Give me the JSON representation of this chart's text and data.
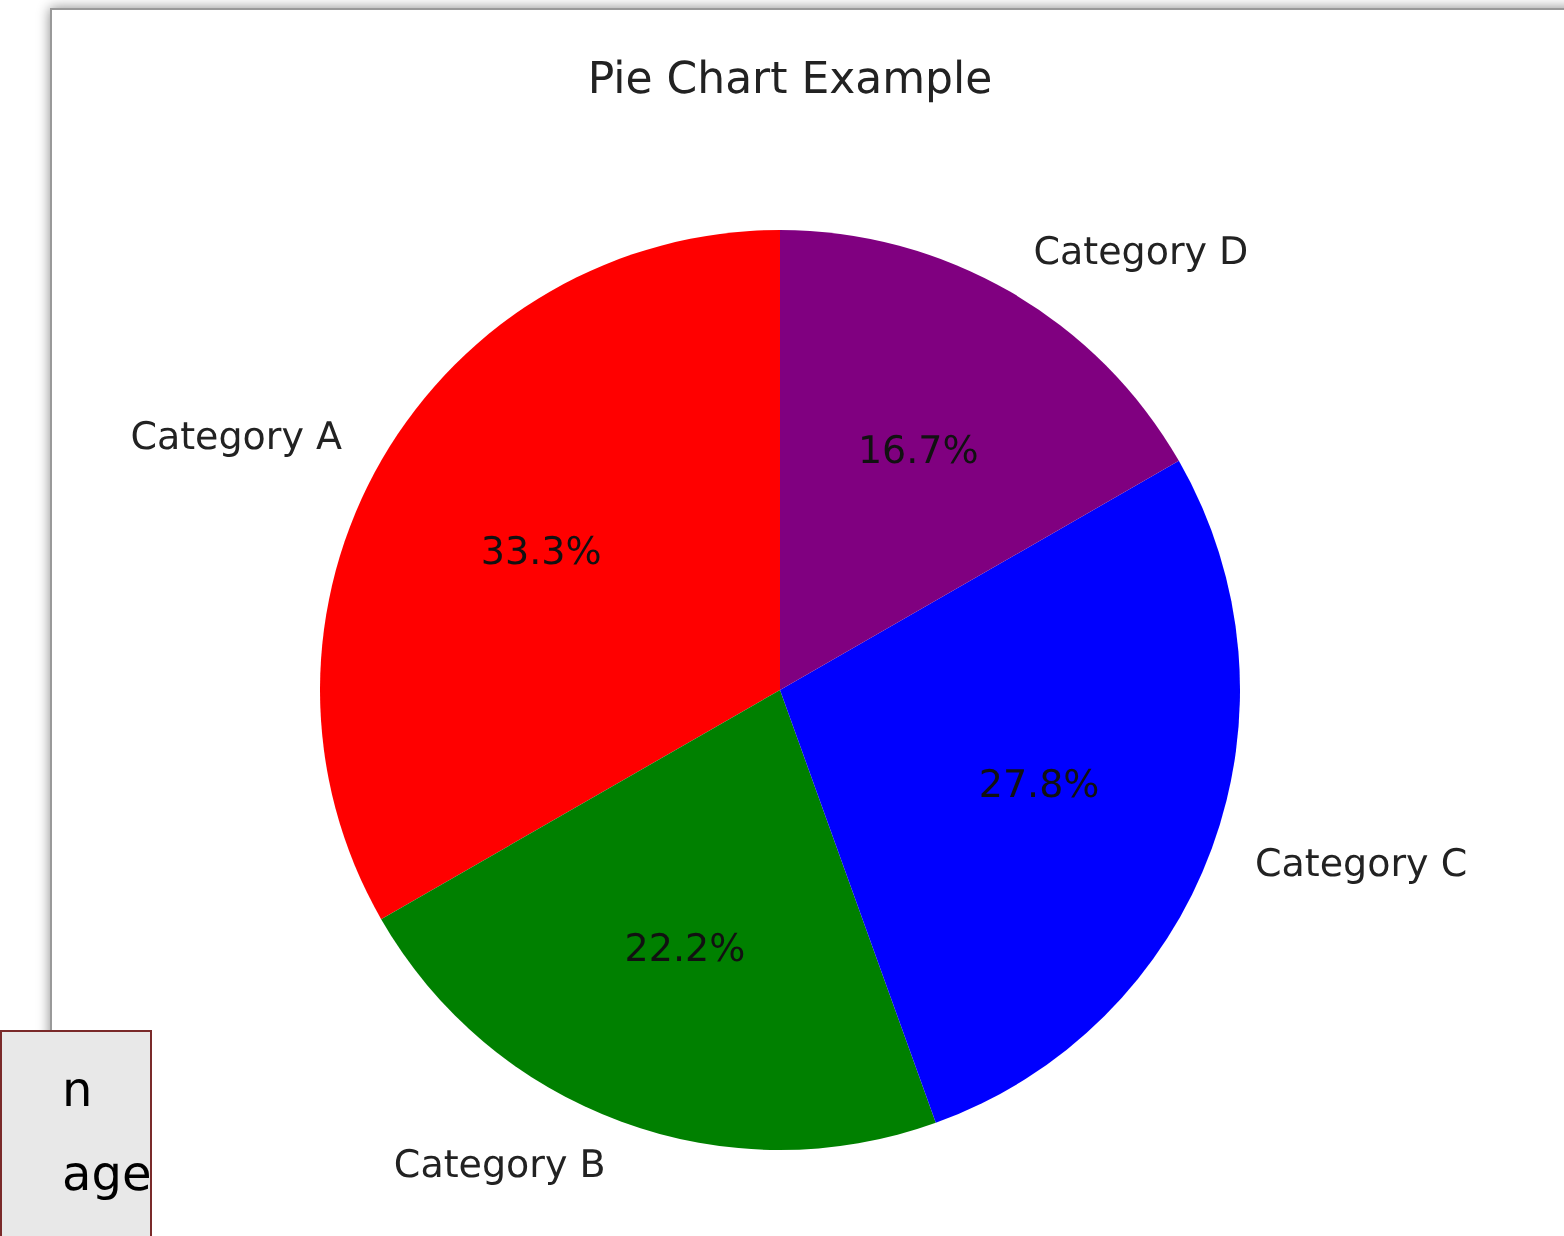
{
  "chart_data": {
    "type": "pie",
    "title": "Pie Chart Example",
    "categories": [
      "Category A",
      "Category B",
      "Category C",
      "Category D"
    ],
    "values": [
      33.3,
      22.2,
      27.8,
      16.7
    ],
    "colors": [
      "#ff0000",
      "#008000",
      "#0000ff",
      "#800080"
    ],
    "value_labels": [
      "33.3%",
      "22.2%",
      "27.8%",
      "16.7%"
    ],
    "annotations": [
      "n\nage"
    ]
  }
}
